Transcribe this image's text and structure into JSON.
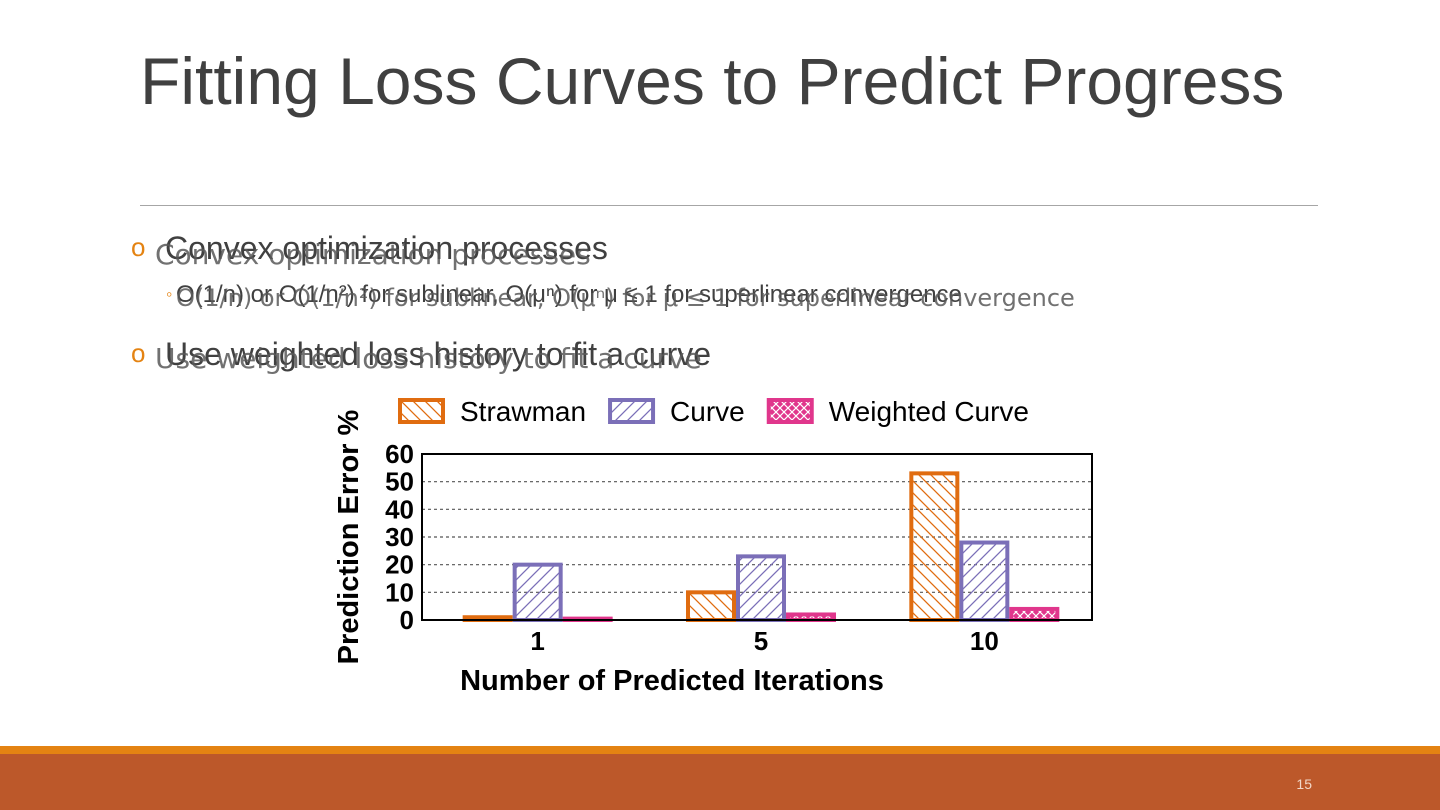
{
  "slide": {
    "title": "Fitting Loss Curves to Predict Progress",
    "page_number": "15",
    "bullets": [
      {
        "marker": "o",
        "text": "Convex optimization processes"
      },
      {
        "marker": "◦",
        "text": "O(1/n) or O(1/n²) for sublinear, O(μⁿ) for μ ≤ 1 for superlinear convergence"
      },
      {
        "marker": "o",
        "text": "Use weighted loss history to fit a curve"
      }
    ],
    "ghost_bullets": [
      "Convex optimization processes",
      "O(1/n) or O(1/n²) for sublinear, O(μⁿ) for μ ≤ 1 for superlinear convergence",
      "Use weighted loss history to fit a curve"
    ],
    "colors": {
      "accent": "#e48312",
      "footer": "#bc582a",
      "title": "#404040"
    }
  },
  "chart_data": {
    "type": "bar",
    "categories": [
      "1",
      "5",
      "10"
    ],
    "series": [
      {
        "name": "Strawman",
        "values": [
          1,
          10,
          53
        ],
        "color": "#e06c10",
        "pattern": "back-diagonal"
      },
      {
        "name": "Curve",
        "values": [
          20,
          23,
          28
        ],
        "color": "#7b6fb8",
        "pattern": "forward-diagonal"
      },
      {
        "name": "Weighted Curve",
        "values": [
          0.5,
          2,
          4
        ],
        "color": "#e0368c",
        "pattern": "crosshatch"
      }
    ],
    "xlabel": "Number of Predicted Iterations",
    "ylabel": "Prediction Error %",
    "yticks": [
      "0",
      "10",
      "20",
      "30",
      "40",
      "50",
      "60"
    ],
    "ylim": [
      0,
      60
    ],
    "grid": true,
    "legend": "top"
  }
}
